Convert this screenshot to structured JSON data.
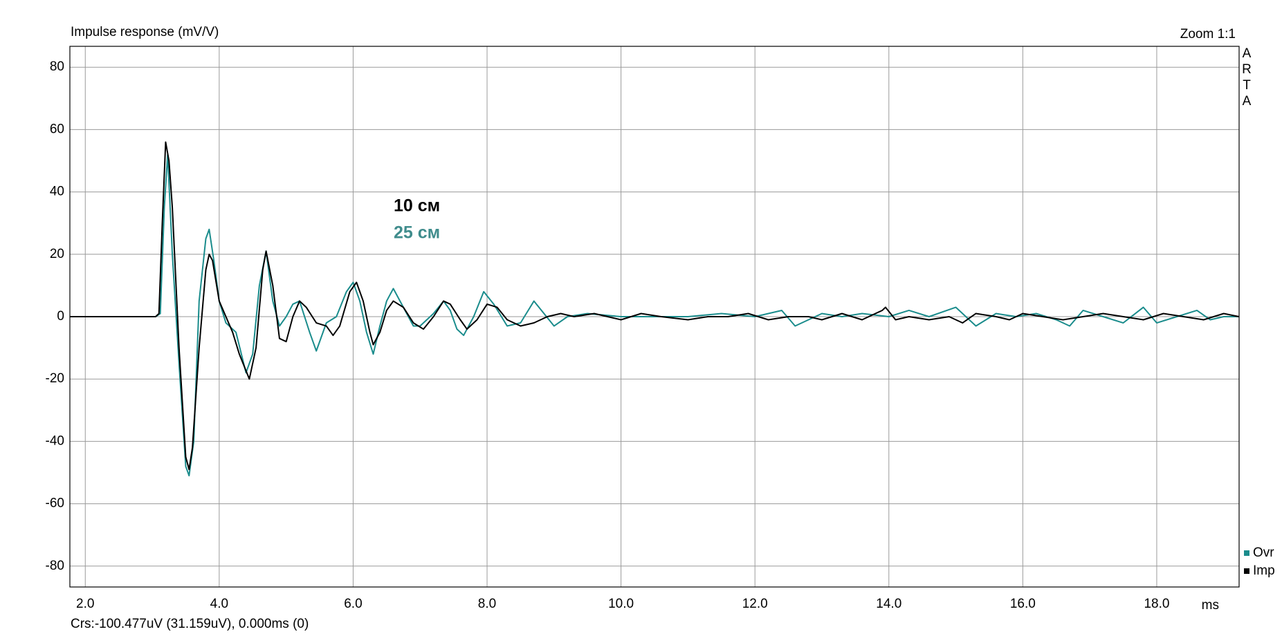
{
  "chart_data": {
    "type": "line",
    "title": "Impulse response (mV/V)",
    "zoom_label": "Zoom 1:1",
    "brand": [
      "A",
      "R",
      "T",
      "A"
    ],
    "x_unit": "ms",
    "cursor": "Crs:-100.477uV (31.159uV), 0.000ms (0)",
    "annotations": [
      {
        "text": "10 см",
        "color": "#000000"
      },
      {
        "text": "25 см",
        "color": "#3f8c8c"
      }
    ],
    "xlim": [
      1.77,
      19.23
    ],
    "ylim": [
      -86.7,
      86.7
    ],
    "xticks": [
      {
        "value": 2,
        "label": "2.0"
      },
      {
        "value": 4,
        "label": "4.0"
      },
      {
        "value": 6,
        "label": "6.0"
      },
      {
        "value": 8,
        "label": "8.0"
      },
      {
        "value": 10,
        "label": "10.0"
      },
      {
        "value": 12,
        "label": "12.0"
      },
      {
        "value": 14,
        "label": "14.0"
      },
      {
        "value": 16,
        "label": "16.0"
      },
      {
        "value": 18,
        "label": "18.0"
      }
    ],
    "yticks": [
      -80,
      -60,
      -40,
      -20,
      0,
      20,
      40,
      60,
      80
    ],
    "grid": true,
    "legend": "lower-right-outside",
    "series": [
      {
        "name": "Ovr",
        "color": "#1a8c8c",
        "x": [
          1.77,
          3.05,
          3.12,
          3.18,
          3.23,
          3.3,
          3.4,
          3.5,
          3.55,
          3.62,
          3.7,
          3.8,
          3.85,
          3.92,
          4.0,
          4.1,
          4.25,
          4.4,
          4.5,
          4.6,
          4.7,
          4.8,
          4.9,
          5.0,
          5.1,
          5.2,
          5.35,
          5.45,
          5.6,
          5.75,
          5.9,
          6.0,
          6.1,
          6.2,
          6.3,
          6.4,
          6.5,
          6.6,
          6.75,
          6.9,
          7.0,
          7.2,
          7.35,
          7.45,
          7.55,
          7.65,
          7.8,
          7.95,
          8.1,
          8.3,
          8.5,
          8.7,
          8.85,
          9.0,
          9.2,
          9.5,
          10.0,
          10.5,
          11.0,
          11.5,
          12.0,
          12.4,
          12.6,
          12.8,
          13.0,
          13.3,
          13.6,
          14.0,
          14.3,
          14.6,
          15.0,
          15.3,
          15.6,
          15.9,
          16.2,
          16.5,
          16.7,
          16.9,
          17.2,
          17.5,
          17.8,
          18.0,
          18.3,
          18.6,
          18.8,
          19.0,
          19.23
        ],
        "values": [
          0,
          0,
          1,
          35,
          52,
          20,
          -15,
          -48,
          -51,
          -40,
          5,
          25,
          28,
          18,
          5,
          -2,
          -5,
          -18,
          -12,
          10,
          21,
          5,
          -3,
          0,
          4,
          5,
          -5,
          -11,
          -2,
          0,
          8,
          11,
          5,
          -5,
          -12,
          -3,
          5,
          9,
          3,
          -3,
          -3,
          1,
          5,
          2,
          -4,
          -6,
          0,
          8,
          4,
          -3,
          -2,
          5,
          1,
          -3,
          0,
          1,
          0,
          0,
          0,
          1,
          0,
          2,
          -3,
          -1,
          1,
          0,
          1,
          0,
          2,
          0,
          3,
          -3,
          1,
          0,
          1,
          -1,
          -3,
          2,
          0,
          -2,
          3,
          -2,
          0,
          2,
          -1,
          0,
          0
        ]
      },
      {
        "name": "Imp",
        "color": "#000000",
        "x": [
          1.77,
          3.05,
          3.1,
          3.15,
          3.2,
          3.25,
          3.3,
          3.4,
          3.5,
          3.55,
          3.6,
          3.7,
          3.8,
          3.85,
          3.9,
          4.0,
          4.1,
          4.2,
          4.3,
          4.45,
          4.55,
          4.65,
          4.7,
          4.8,
          4.9,
          5.0,
          5.1,
          5.2,
          5.3,
          5.45,
          5.6,
          5.7,
          5.8,
          5.95,
          6.05,
          6.15,
          6.25,
          6.3,
          6.4,
          6.5,
          6.6,
          6.75,
          6.9,
          7.05,
          7.2,
          7.35,
          7.45,
          7.6,
          7.7,
          7.85,
          8.0,
          8.15,
          8.3,
          8.5,
          8.7,
          8.9,
          9.1,
          9.3,
          9.6,
          9.8,
          10.0,
          10.3,
          10.6,
          11.0,
          11.3,
          11.6,
          11.9,
          12.2,
          12.5,
          12.8,
          13.0,
          13.3,
          13.6,
          13.9,
          13.95,
          14.1,
          14.3,
          14.6,
          14.9,
          15.1,
          15.3,
          15.6,
          15.8,
          16.0,
          16.3,
          16.6,
          16.9,
          17.2,
          17.5,
          17.8,
          18.1,
          18.4,
          18.7,
          19.0,
          19.23
        ],
        "values": [
          0,
          0,
          1,
          30,
          56,
          50,
          35,
          -10,
          -45,
          -49,
          -42,
          -10,
          15,
          20,
          18,
          5,
          0,
          -5,
          -12,
          -20,
          -10,
          15,
          21,
          10,
          -7,
          -8,
          0,
          5,
          3,
          -2,
          -3,
          -6,
          -3,
          8,
          11,
          5,
          -5,
          -9,
          -5,
          2,
          5,
          3,
          -2,
          -4,
          0,
          5,
          4,
          -1,
          -4,
          -1,
          4,
          3,
          -1,
          -3,
          -2,
          0,
          1,
          0,
          1,
          0,
          -1,
          1,
          0,
          -1,
          0,
          0,
          1,
          -1,
          0,
          0,
          -1,
          1,
          -1,
          2,
          3,
          -1,
          0,
          -1,
          0,
          -2,
          1,
          0,
          -1,
          1,
          0,
          -1,
          0,
          1,
          0,
          -1,
          1,
          0,
          -1,
          1,
          0
        ]
      }
    ]
  }
}
